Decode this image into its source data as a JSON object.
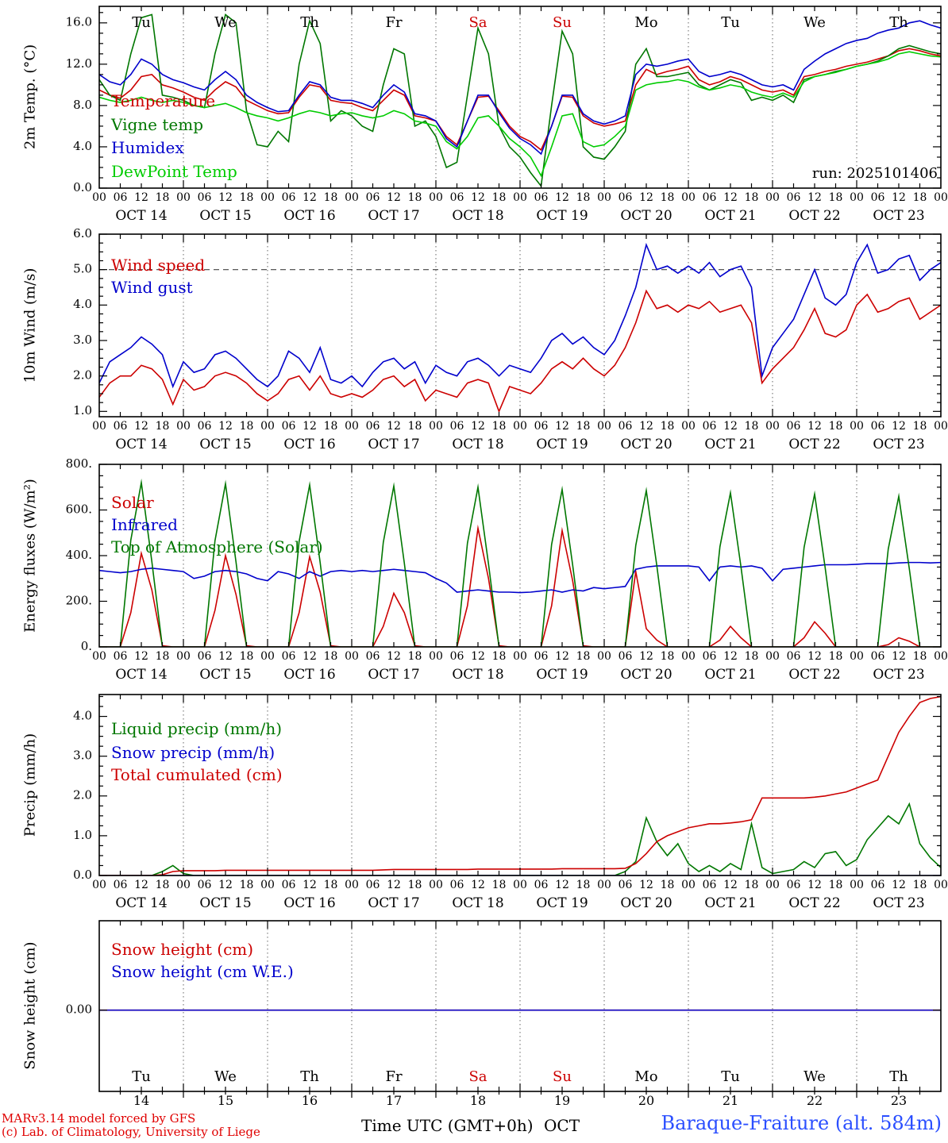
{
  "run_label": "run: 2025101406",
  "footer": {
    "credit_line1": "MARv3.14 model forced by GFS",
    "credit_line2": "(c) Lab. of Climatology, University of Liege",
    "xlabel": "Time UTC (GMT+0h)",
    "month": "OCT",
    "station": "Baraque-Fraiture (alt. 584m)"
  },
  "x_axis": {
    "hours_total": 240,
    "hour_tick_labels": [
      "00",
      "06",
      "12",
      "18"
    ],
    "day_labels": [
      "OCT 14",
      "OCT 15",
      "OCT 16",
      "OCT 17",
      "OCT 18",
      "OCT 19",
      "OCT 20",
      "OCT 21",
      "OCT 22",
      "OCT 23"
    ],
    "weekday_labels": [
      "Tu",
      "We",
      "Th",
      "Fr",
      "Sa",
      "Su",
      "Mo",
      "Tu",
      "We",
      "Th"
    ],
    "weekend_indices": [
      4,
      5
    ],
    "day_numbers": [
      "14",
      "15",
      "16",
      "17",
      "18",
      "19",
      "20",
      "21",
      "22",
      "23"
    ],
    "weekday_color": "#000000",
    "weekend_color": "#cc0000"
  },
  "chart_data": [
    {
      "type": "line",
      "ylabel": "2m Temp. (°C)",
      "ylim": [
        0,
        17.6
      ],
      "ytick_values": [
        0,
        4,
        8,
        12,
        16
      ],
      "ytick_labels": [
        "0.0",
        "4.0",
        "8.0",
        "12.0",
        "16.0"
      ],
      "step_hours": 3,
      "grid": "vertical-dotted",
      "legend_position": "top-left",
      "series": [
        {
          "label": "Temperature",
          "color": "#cc0000",
          "values": [
            9.5,
            9.0,
            8.7,
            9.5,
            10.8,
            11.0,
            10.0,
            9.7,
            9.3,
            8.8,
            8.5,
            9.5,
            10.3,
            9.8,
            8.5,
            8.0,
            7.5,
            7.2,
            7.3,
            8.8,
            10.0,
            9.8,
            8.5,
            8.3,
            8.2,
            7.8,
            7.5,
            8.5,
            9.5,
            9.0,
            7.0,
            6.8,
            6.5,
            5.0,
            4.2,
            6.5,
            8.8,
            8.9,
            7.5,
            6.0,
            5.0,
            4.5,
            3.7,
            6.0,
            8.9,
            8.8,
            7.0,
            6.3,
            6.0,
            6.2,
            6.5,
            10.0,
            11.5,
            11.0,
            11.3,
            11.5,
            11.8,
            10.5,
            10.0,
            10.3,
            10.8,
            10.5,
            10.0,
            9.5,
            9.3,
            9.5,
            9.0,
            10.8,
            11.0,
            11.3,
            11.5,
            11.8,
            12.0,
            12.2,
            12.5,
            12.8,
            13.3,
            13.5,
            13.3,
            13.0,
            12.8
          ]
        },
        {
          "label": "Vigne temp",
          "color": "#007700",
          "values": [
            10.5,
            9.0,
            8.5,
            13.0,
            16.5,
            16.8,
            9.0,
            8.8,
            8.5,
            8.0,
            7.8,
            13.0,
            16.8,
            16.0,
            7.5,
            4.2,
            4.0,
            5.5,
            4.5,
            12.0,
            16.2,
            14.0,
            6.5,
            7.5,
            7.0,
            6.0,
            5.5,
            10.0,
            13.5,
            13.0,
            6.0,
            6.5,
            5.0,
            2.0,
            2.5,
            9.0,
            15.5,
            13.0,
            6.0,
            4.0,
            3.0,
            1.5,
            0.2,
            8.0,
            15.2,
            13.0,
            4.0,
            3.0,
            2.8,
            4.0,
            5.5,
            12.0,
            13.5,
            10.8,
            10.8,
            11.0,
            11.2,
            10.0,
            9.5,
            10.0,
            10.5,
            10.2,
            8.5,
            8.8,
            8.5,
            9.0,
            8.3,
            10.5,
            10.8,
            11.0,
            11.3,
            11.5,
            11.8,
            12.0,
            12.3,
            12.8,
            13.5,
            13.8,
            13.5,
            13.2,
            13.0
          ]
        },
        {
          "label": "Humidex",
          "color": "#0000cc",
          "values": [
            11.0,
            10.3,
            10.0,
            11.0,
            12.5,
            12.0,
            11.0,
            10.5,
            10.2,
            9.8,
            9.5,
            10.5,
            11.3,
            10.5,
            9.0,
            8.3,
            7.8,
            7.4,
            7.5,
            9.0,
            10.3,
            10.0,
            8.8,
            8.5,
            8.5,
            8.2,
            7.8,
            9.0,
            10.0,
            9.3,
            7.2,
            7.0,
            6.5,
            4.8,
            4.0,
            6.5,
            9.0,
            9.0,
            7.3,
            5.8,
            4.8,
            4.2,
            3.3,
            6.0,
            9.0,
            9.0,
            7.2,
            6.5,
            6.2,
            6.5,
            7.0,
            11.0,
            12.0,
            11.8,
            12.0,
            12.3,
            12.5,
            11.3,
            10.8,
            11.0,
            11.3,
            11.0,
            10.5,
            10.0,
            9.8,
            10.0,
            9.5,
            11.5,
            12.3,
            13.0,
            13.5,
            14.0,
            14.3,
            14.5,
            15.0,
            15.3,
            15.5,
            16.0,
            16.2,
            15.8,
            15.5
          ]
        },
        {
          "label": "DewPoint Temp",
          "color": "#00cc00",
          "values": [
            8.8,
            8.5,
            8.3,
            8.5,
            8.8,
            8.5,
            8.3,
            8.5,
            8.3,
            8.0,
            7.8,
            8.0,
            8.2,
            7.8,
            7.3,
            7.0,
            6.8,
            6.5,
            6.8,
            7.2,
            7.5,
            7.3,
            7.0,
            7.2,
            7.3,
            7.0,
            6.8,
            7.0,
            7.5,
            7.2,
            6.5,
            6.3,
            6.0,
            4.5,
            3.8,
            5.0,
            6.8,
            7.0,
            6.0,
            4.8,
            4.0,
            3.0,
            1.2,
            4.0,
            7.0,
            7.2,
            4.5,
            4.0,
            4.2,
            5.0,
            6.0,
            9.5,
            10.0,
            10.2,
            10.3,
            10.5,
            10.3,
            9.8,
            9.5,
            9.7,
            10.0,
            9.8,
            9.3,
            9.0,
            8.8,
            9.2,
            8.8,
            10.3,
            10.8,
            11.0,
            11.2,
            11.5,
            11.8,
            12.0,
            12.2,
            12.5,
            13.0,
            13.2,
            13.0,
            12.8,
            12.7
          ]
        }
      ]
    },
    {
      "type": "line",
      "ylabel": "10m Wind (m/s)",
      "ylim": [
        0.85,
        6.0
      ],
      "ytick_values": [
        1,
        2,
        3,
        4,
        5,
        6
      ],
      "ytick_labels": [
        "1.0",
        "2.0",
        "3.0",
        "4.0",
        "5.0",
        "6.0"
      ],
      "ref_line": 5.0,
      "step_hours": 3,
      "grid": "vertical-dotted",
      "legend_position": "top-left",
      "series": [
        {
          "label": "Wind speed",
          "color": "#cc0000",
          "values": [
            1.4,
            1.8,
            2.0,
            2.0,
            2.3,
            2.2,
            1.9,
            1.2,
            1.9,
            1.6,
            1.7,
            2.0,
            2.1,
            2.0,
            1.8,
            1.5,
            1.3,
            1.5,
            1.9,
            2.0,
            1.6,
            2.0,
            1.5,
            1.4,
            1.5,
            1.4,
            1.6,
            1.9,
            2.0,
            1.7,
            1.9,
            1.3,
            1.6,
            1.5,
            1.4,
            1.8,
            1.9,
            1.8,
            1.0,
            1.7,
            1.6,
            1.5,
            1.8,
            2.2,
            2.4,
            2.2,
            2.5,
            2.2,
            2.0,
            2.3,
            2.8,
            3.5,
            4.4,
            3.9,
            4.0,
            3.8,
            4.0,
            3.9,
            4.1,
            3.8,
            3.9,
            4.0,
            3.5,
            1.8,
            2.2,
            2.5,
            2.8,
            3.3,
            3.9,
            3.2,
            3.1,
            3.3,
            4.0,
            4.3,
            3.8,
            3.9,
            4.1,
            4.2,
            3.6,
            3.8,
            4.0
          ]
        },
        {
          "label": "Wind gust",
          "color": "#0000cc",
          "values": [
            1.8,
            2.4,
            2.6,
            2.8,
            3.1,
            2.9,
            2.6,
            1.7,
            2.4,
            2.1,
            2.2,
            2.6,
            2.7,
            2.5,
            2.2,
            1.9,
            1.7,
            2.0,
            2.7,
            2.5,
            2.1,
            2.8,
            1.9,
            1.8,
            2.0,
            1.7,
            2.1,
            2.4,
            2.5,
            2.2,
            2.4,
            1.8,
            2.3,
            2.1,
            2.0,
            2.4,
            2.5,
            2.3,
            2.0,
            2.3,
            2.2,
            2.1,
            2.5,
            3.0,
            3.2,
            2.9,
            3.1,
            2.8,
            2.6,
            3.0,
            3.7,
            4.5,
            5.7,
            5.0,
            5.1,
            4.9,
            5.1,
            4.9,
            5.2,
            4.8,
            5.0,
            5.1,
            4.5,
            2.0,
            2.8,
            3.2,
            3.6,
            4.3,
            5.0,
            4.2,
            4.0,
            4.3,
            5.2,
            5.7,
            4.9,
            5.0,
            5.3,
            5.4,
            4.7,
            5.0,
            5.2
          ]
        }
      ]
    },
    {
      "type": "line",
      "ylabel": "Energy fluxes (W/m²)",
      "ylim": [
        0,
        800
      ],
      "ytick_values": [
        0,
        200,
        400,
        600,
        800
      ],
      "ytick_labels": [
        "0.",
        "200.",
        "400.",
        "600.",
        "800."
      ],
      "step_hours": 3,
      "grid": "vertical-dotted",
      "legend_position": "top-left",
      "series": [
        {
          "label": "Solar",
          "color": "#cc0000",
          "values": [
            0,
            0,
            0,
            150,
            410,
            250,
            5,
            0,
            0,
            0,
            0,
            160,
            400,
            230,
            5,
            0,
            0,
            0,
            0,
            150,
            395,
            240,
            5,
            0,
            0,
            0,
            0,
            90,
            235,
            150,
            5,
            0,
            0,
            0,
            0,
            180,
            520,
            300,
            5,
            0,
            0,
            0,
            0,
            180,
            510,
            290,
            5,
            0,
            0,
            0,
            0,
            330,
            80,
            30,
            0,
            0,
            0,
            0,
            0,
            30,
            90,
            40,
            0,
            0,
            0,
            0,
            0,
            40,
            110,
            60,
            0,
            0,
            0,
            0,
            0,
            10,
            40,
            25,
            0,
            0,
            0
          ]
        },
        {
          "label": "Infrared",
          "color": "#0000cc",
          "values": [
            335,
            330,
            325,
            330,
            340,
            345,
            340,
            335,
            330,
            300,
            310,
            330,
            335,
            330,
            320,
            300,
            290,
            330,
            320,
            300,
            330,
            310,
            330,
            335,
            330,
            335,
            330,
            335,
            340,
            335,
            330,
            325,
            300,
            280,
            240,
            245,
            250,
            245,
            240,
            240,
            238,
            240,
            245,
            250,
            240,
            250,
            245,
            260,
            255,
            260,
            265,
            340,
            350,
            355,
            355,
            355,
            355,
            350,
            290,
            350,
            355,
            350,
            355,
            345,
            290,
            340,
            345,
            350,
            355,
            360,
            360,
            360,
            362,
            365,
            365,
            365,
            368,
            370,
            370,
            368,
            370
          ]
        },
        {
          "label": "Top of Atmosphere (Solar)",
          "color": "#007700",
          "values": [
            0,
            0,
            0,
            468,
            720,
            374,
            0,
            0,
            0,
            0,
            0,
            465,
            715,
            372,
            0,
            0,
            0,
            0,
            0,
            462,
            710,
            369,
            0,
            0,
            0,
            0,
            0,
            458,
            705,
            367,
            0,
            0,
            0,
            0,
            0,
            455,
            700,
            364,
            0,
            0,
            0,
            0,
            0,
            449,
            690,
            359,
            0,
            0,
            0,
            0,
            0,
            445,
            685,
            356,
            0,
            0,
            0,
            0,
            0,
            439,
            675,
            351,
            0,
            0,
            0,
            0,
            0,
            436,
            670,
            348,
            0,
            0,
            0,
            0,
            0,
            429,
            660,
            343,
            0,
            0,
            0
          ]
        }
      ]
    },
    {
      "type": "line",
      "ylabel": "Precip (mm/h)",
      "ylim": [
        0,
        4.55
      ],
      "ytick_values": [
        0,
        1,
        2,
        3,
        4
      ],
      "ytick_labels": [
        "0.0",
        "1.0",
        "2.0",
        "3.0",
        "4.0"
      ],
      "step_hours": 3,
      "grid": "vertical-dotted",
      "legend_position": "top-left",
      "series": [
        {
          "label": "Liquid precip (mm/h)",
          "color": "#007700",
          "values": [
            0,
            0,
            0,
            0,
            0,
            0,
            0.1,
            0.25,
            0.05,
            0,
            0,
            0,
            0,
            0,
            0,
            0,
            0,
            0,
            0,
            0,
            0,
            0,
            0,
            0,
            0,
            0,
            0,
            0,
            0,
            0,
            0,
            0,
            0,
            0,
            0,
            0,
            0,
            0,
            0,
            0,
            0,
            0,
            0,
            0,
            0,
            0,
            0,
            0,
            0,
            0,
            0.1,
            0.35,
            1.45,
            0.85,
            0.5,
            0.8,
            0.3,
            0.1,
            0.25,
            0.1,
            0.3,
            0.15,
            1.3,
            0.2,
            0.05,
            0.1,
            0.15,
            0.35,
            0.2,
            0.55,
            0.6,
            0.25,
            0.4,
            0.9,
            1.2,
            1.5,
            1.3,
            1.8,
            0.8,
            0.45,
            0.2
          ]
        },
        {
          "label": "Snow precip (mm/h)",
          "color": "#0000cc",
          "constant": 0
        },
        {
          "label": "Total cumulated (cm)",
          "color": "#cc0000",
          "values": [
            0,
            0,
            0,
            0,
            0,
            0,
            0.02,
            0.1,
            0.12,
            0.12,
            0.12,
            0.12,
            0.13,
            0.13,
            0.13,
            0.13,
            0.13,
            0.13,
            0.13,
            0.13,
            0.13,
            0.13,
            0.13,
            0.13,
            0.13,
            0.13,
            0.13,
            0.14,
            0.15,
            0.15,
            0.15,
            0.15,
            0.15,
            0.15,
            0.15,
            0.15,
            0.16,
            0.16,
            0.16,
            0.16,
            0.16,
            0.16,
            0.16,
            0.16,
            0.17,
            0.17,
            0.17,
            0.17,
            0.17,
            0.17,
            0.18,
            0.3,
            0.55,
            0.85,
            1.0,
            1.1,
            1.2,
            1.25,
            1.3,
            1.3,
            1.32,
            1.35,
            1.4,
            1.95,
            1.95,
            1.95,
            1.95,
            1.95,
            1.97,
            2.0,
            2.05,
            2.1,
            2.2,
            2.3,
            2.4,
            3.0,
            3.6,
            4.0,
            4.35,
            4.45,
            4.5
          ]
        }
      ]
    },
    {
      "type": "line",
      "ylabel": "Snow height (cm)",
      "ylim": [
        -0.5,
        0.55
      ],
      "ytick_values": [
        0
      ],
      "ytick_labels": [
        "0.00"
      ],
      "step_hours": 3,
      "grid": "vertical-dotted",
      "legend_position": "top-left",
      "series": [
        {
          "label": "Snow height (cm)",
          "color": "#cc0000",
          "constant": 0
        },
        {
          "label": "Snow height (cm W.E.)",
          "color": "#0000cc",
          "constant": 0
        }
      ]
    }
  ]
}
